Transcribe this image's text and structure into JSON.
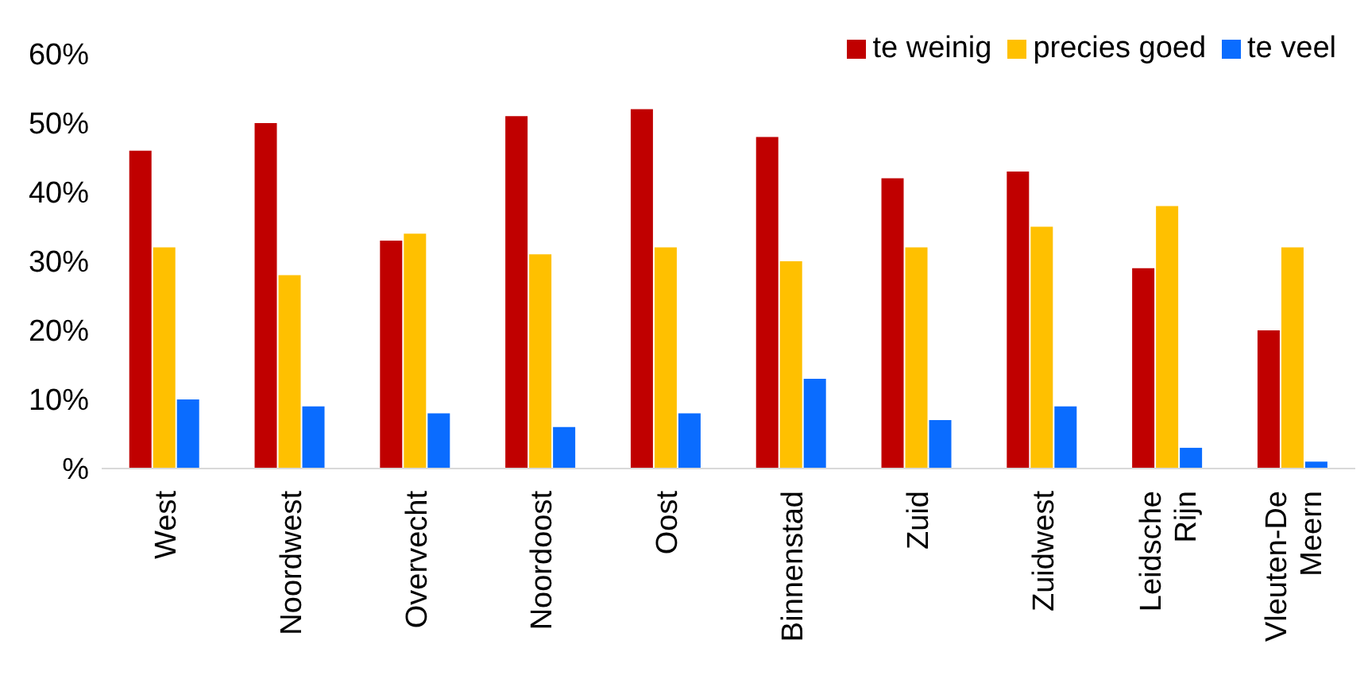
{
  "chart_data": {
    "type": "bar",
    "categories": [
      "West",
      "Noordwest",
      "Overvecht",
      "Noordoost",
      "Oost",
      "Binnenstad",
      "Zuid",
      "Zuidwest",
      "Leidsche Rijn",
      "Vleuten-De Meern"
    ],
    "series": [
      {
        "name": "te weinig",
        "color": "#c00000",
        "values": [
          46,
          50,
          33,
          51,
          52,
          48,
          42,
          43,
          29,
          20
        ]
      },
      {
        "name": "precies goed",
        "color": "#ffc000",
        "values": [
          32,
          28,
          34,
          31,
          32,
          30,
          32,
          35,
          38,
          32
        ]
      },
      {
        "name": "te veel",
        "color": "#0a6cff",
        "values": [
          10,
          9,
          8,
          6,
          8,
          13,
          7,
          9,
          3,
          1
        ]
      }
    ],
    "ylim": [
      0,
      60
    ],
    "yticks": [
      {
        "value": 0,
        "label": "%"
      },
      {
        "value": 10,
        "label": "10%"
      },
      {
        "value": 20,
        "label": "20%"
      },
      {
        "value": 30,
        "label": "30%"
      },
      {
        "value": 40,
        "label": "40%"
      },
      {
        "value": 50,
        "label": "50%"
      },
      {
        "value": 60,
        "label": "60%"
      }
    ],
    "grid": false,
    "legend": "top right"
  }
}
